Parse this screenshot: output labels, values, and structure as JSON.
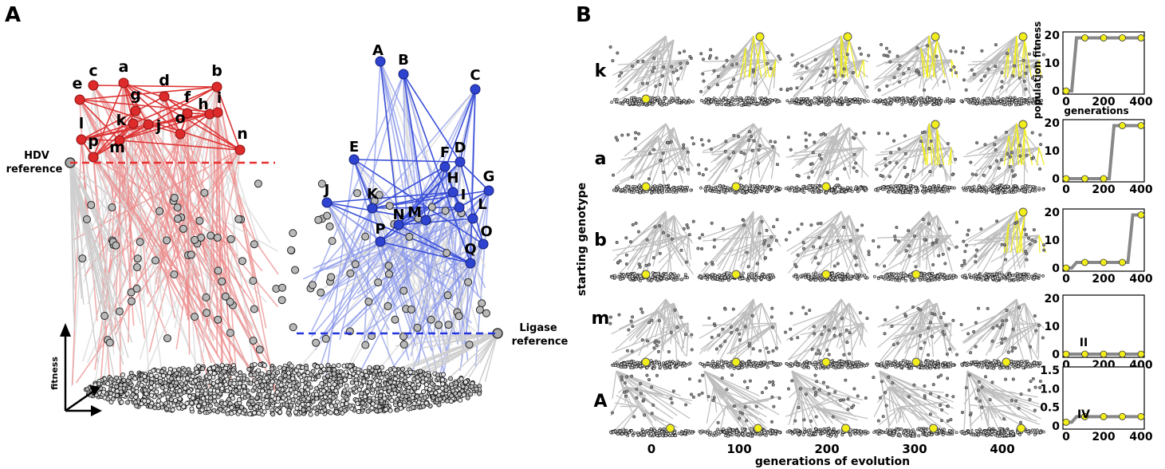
{
  "figure": {
    "panel_a_letter": "A",
    "panel_b_letter": "B"
  },
  "panel_a": {
    "hdv_label_line1": "HDV",
    "hdv_label_line2": "reference",
    "ligase_label_line1": "Ligase",
    "ligase_label_line2": "reference",
    "fitness_axis_label": "fitness",
    "red_peaks": [
      "a",
      "b",
      "c",
      "d",
      "e",
      "f",
      "g",
      "h",
      "i",
      "j",
      "k",
      "l",
      "m",
      "n",
      "o",
      "p"
    ],
    "blue_peaks": [
      "A",
      "B",
      "C",
      "D",
      "E",
      "F",
      "G",
      "H",
      "I",
      "J",
      "K",
      "L",
      "M",
      "N",
      "O",
      "P",
      "Q"
    ],
    "colors": {
      "hdv": "#d92525",
      "ligase": "#3348d6",
      "neutral": "#cfcfcf",
      "nodes": "#222222"
    }
  },
  "panel_b": {
    "row_labels": [
      "k",
      "a",
      "b",
      "m",
      "A"
    ],
    "ylabel": "starting genotype",
    "column_ticks": [
      "0",
      "100",
      "200",
      "300",
      "400"
    ],
    "xlabel": "generations of evolution",
    "highlight_color": "#f2ee1a",
    "mini_charts": [
      {
        "ylabel": "population fitness",
        "xlabel": "generations",
        "yticks": [
          "0",
          "10",
          "20"
        ],
        "xticks": [
          "0",
          "200",
          "400"
        ],
        "annotation": "",
        "x": [
          0,
          100,
          200,
          300,
          400
        ],
        "y": [
          0,
          19,
          19,
          19,
          19
        ]
      },
      {
        "ylabel": "",
        "xlabel": "",
        "yticks": [
          "0",
          "10",
          "20"
        ],
        "xticks": [
          "0",
          "200",
          "400"
        ],
        "annotation": "",
        "x": [
          0,
          100,
          200,
          300,
          400
        ],
        "y": [
          0,
          0,
          0,
          19,
          19
        ]
      },
      {
        "ylabel": "",
        "xlabel": "",
        "yticks": [
          "0",
          "10",
          "20"
        ],
        "xticks": [
          "0",
          "200",
          "400"
        ],
        "annotation": "",
        "x": [
          0,
          100,
          200,
          300,
          400
        ],
        "y": [
          0,
          2,
          2,
          2,
          19
        ]
      },
      {
        "ylabel": "",
        "xlabel": "",
        "yticks": [
          "0",
          "10",
          "20"
        ],
        "xticks": [
          "0",
          "200",
          "400"
        ],
        "annotation": "II",
        "x": [
          0,
          100,
          200,
          300,
          400
        ],
        "y": [
          0,
          0,
          0,
          0,
          0
        ]
      },
      {
        "ylabel": "",
        "xlabel": "",
        "yticks": [
          "0",
          "0.5",
          "1.0",
          "1.5"
        ],
        "xticks": [
          "0",
          "200",
          "400"
        ],
        "annotation": "IV",
        "x": [
          0,
          100,
          200,
          300,
          400
        ],
        "y": [
          0.1,
          0.25,
          0.25,
          0.25,
          0.25
        ]
      }
    ]
  },
  "chart_data": [
    {
      "type": "line",
      "title": "",
      "xlabel": "generations",
      "ylabel": "population fitness",
      "series": [
        {
          "name": "k",
          "x": [
            0,
            100,
            200,
            300,
            400
          ],
          "values": [
            0,
            19,
            19,
            19,
            19
          ]
        }
      ],
      "ylim": [
        0,
        20
      ],
      "xlim": [
        0,
        400
      ]
    },
    {
      "type": "line",
      "title": "",
      "xlabel": "",
      "ylabel": "",
      "series": [
        {
          "name": "a",
          "x": [
            0,
            100,
            200,
            300,
            400
          ],
          "values": [
            0,
            0,
            0,
            19,
            19
          ]
        }
      ],
      "ylim": [
        0,
        20
      ],
      "xlim": [
        0,
        400
      ]
    },
    {
      "type": "line",
      "title": "",
      "xlabel": "",
      "ylabel": "",
      "series": [
        {
          "name": "b",
          "x": [
            0,
            100,
            200,
            300,
            400
          ],
          "values": [
            0,
            2,
            2,
            2,
            19
          ]
        }
      ],
      "ylim": [
        0,
        20
      ],
      "xlim": [
        0,
        400
      ]
    },
    {
      "type": "line",
      "title": "",
      "xlabel": "",
      "ylabel": "",
      "series": [
        {
          "name": "m",
          "x": [
            0,
            100,
            200,
            300,
            400
          ],
          "values": [
            0,
            0,
            0,
            0,
            0
          ]
        }
      ],
      "ylim": [
        0,
        20
      ],
      "xlim": [
        0,
        400
      ]
    },
    {
      "type": "line",
      "title": "",
      "xlabel": "",
      "ylabel": "",
      "series": [
        {
          "name": "A",
          "x": [
            0,
            100,
            200,
            300,
            400
          ],
          "values": [
            0.1,
            0.25,
            0.25,
            0.25,
            0.25
          ]
        }
      ],
      "ylim": [
        0,
        1.5
      ],
      "xlim": [
        0,
        400
      ]
    }
  ]
}
